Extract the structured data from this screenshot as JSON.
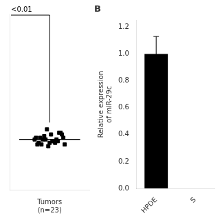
{
  "chart_data": [
    {
      "type": "scatter",
      "xlabel": "Tumors\n(n=23)",
      "values": [
        0.3,
        0.32,
        0.29,
        0.31,
        0.27,
        0.33,
        0.34,
        0.28,
        0.26,
        0.29,
        0.31,
        0.3,
        0.28,
        0.27,
        0.3,
        0.29,
        0.33,
        0.31,
        0.28,
        0.34,
        0.27,
        0.36,
        0.3
      ],
      "color": "#000000",
      "marker": "square",
      "median": 0.3,
      "annotations": [
        "<0.01"
      ],
      "ylim": [
        0.0,
        1.05
      ],
      "tick_labels": false,
      "grid": false
    },
    {
      "type": "bar",
      "title": "B",
      "categories": [
        "HPDE",
        "S"
      ],
      "values": [
        1.0,
        null
      ],
      "errors": [
        0.13,
        null
      ],
      "color": "#000000",
      "ylabel": "Relative expression\nof miR-29c",
      "ylim": [
        0.0,
        1.25
      ],
      "yticks": [
        {
          "value": 0.0,
          "label": "0.0"
        },
        0.2,
        0.4,
        0.6,
        0.8,
        {
          "value": 1.0,
          "label": "1.0"
        },
        1.2
      ],
      "grid": false
    }
  ]
}
